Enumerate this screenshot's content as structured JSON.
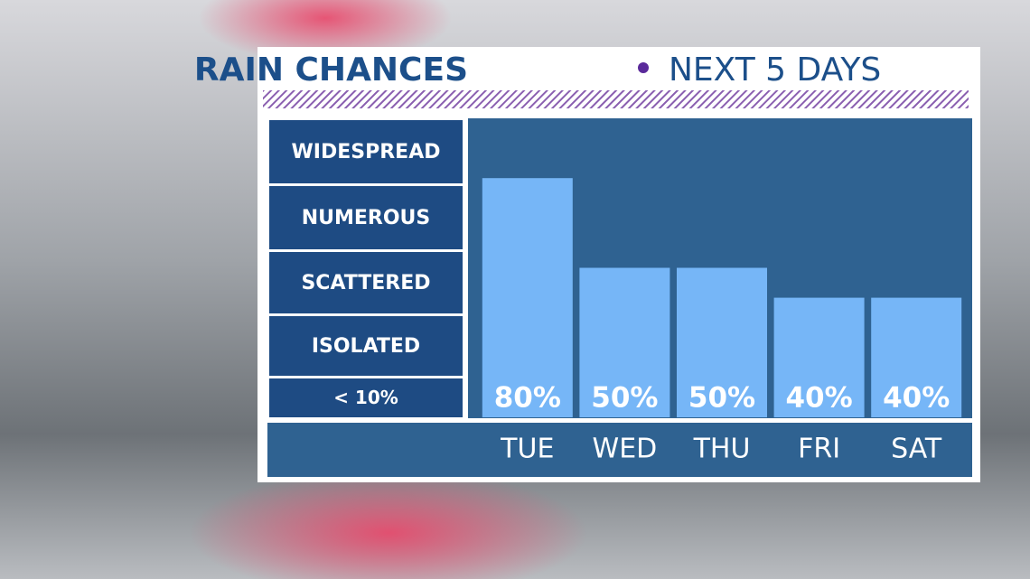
{
  "chart_data": {
    "type": "bar",
    "title": "RAIN CHANCES",
    "subtitle": "NEXT 5 DAYS",
    "levels": [
      "WIDESPREAD",
      "NUMEROUS",
      "SCATTERED",
      "ISOLATED",
      "< 10%"
    ],
    "categories": [
      "TUE",
      "WED",
      "THU",
      "FRI",
      "SAT"
    ],
    "values": [
      80,
      50,
      50,
      40,
      40
    ],
    "value_labels": [
      "80%",
      "50%",
      "50%",
      "40%",
      "40%"
    ],
    "color": "#76b6f7",
    "ylim": [
      0,
      100
    ]
  }
}
